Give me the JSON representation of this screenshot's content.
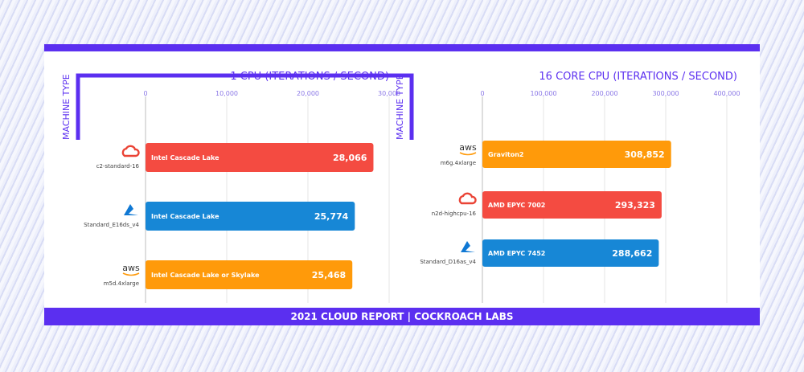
{
  "footer": "2021 CLOUD REPORT | COCKROACH LABS",
  "colors": {
    "accent": "#5b2ff0",
    "gcp": "#f44b41",
    "azure": "#1787d6",
    "aws": "#ff9a0a"
  },
  "chart_data": [
    {
      "type": "bar",
      "orientation": "horizontal",
      "title": "1 CPU (ITERATIONS / SECOND)",
      "ylabel": "MACHINE TYPE",
      "xlim": [
        0,
        30000
      ],
      "ticks": [
        "0",
        "10,000",
        "20,000",
        "30,000"
      ],
      "tick_values": [
        0,
        10000,
        20000,
        30000
      ],
      "grid": true,
      "categories": [
        "c2-standard-16",
        "Standard_E16ds_v4",
        "m5d.4xlarge"
      ],
      "providers": [
        "gcp",
        "azure",
        "aws"
      ],
      "bar_labels": [
        "Intel Cascade Lake",
        "Intel Cascade Lake",
        "Intel Cascade Lake or Skylake"
      ],
      "values": [
        28066,
        25774,
        25468
      ],
      "value_labels": [
        "28,066",
        "25,774",
        "25,468"
      ]
    },
    {
      "type": "bar",
      "orientation": "horizontal",
      "title": "16 CORE CPU (ITERATIONS / SECOND)",
      "ylabel": "MACHINE TYPE",
      "xlim": [
        0,
        400000
      ],
      "ticks": [
        "0",
        "100,000",
        "200,000",
        "300,000",
        "400,000"
      ],
      "tick_values": [
        0,
        100000,
        200000,
        300000,
        400000
      ],
      "grid": true,
      "categories": [
        "m6g.4xlarge",
        "n2d-highcpu-16",
        "Standard_D16as_v4"
      ],
      "providers": [
        "aws",
        "gcp",
        "azure"
      ],
      "bar_labels": [
        "Graviton2",
        "AMD EPYC 7002",
        "AMD EPYC 7452"
      ],
      "values": [
        308852,
        293323,
        288662
      ],
      "value_labels": [
        "308,852",
        "293,323",
        "288,662"
      ]
    }
  ]
}
